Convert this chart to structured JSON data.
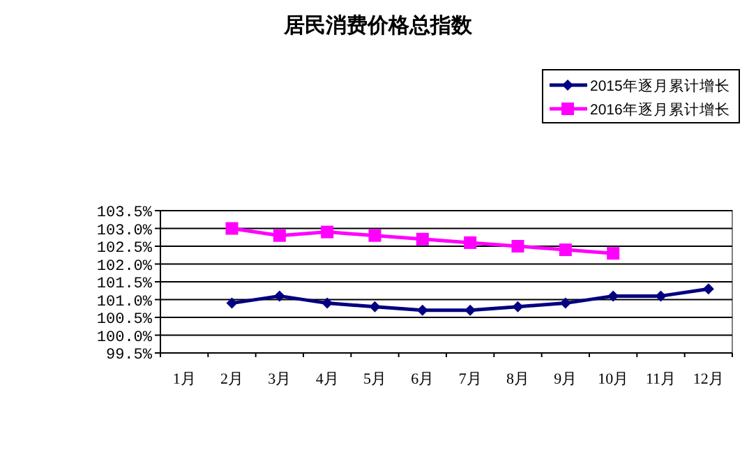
{
  "chart_data": {
    "type": "line",
    "title": "居民消费价格总指数",
    "categories": [
      "1月",
      "2月",
      "3月",
      "4月",
      "5月",
      "6月",
      "7月",
      "8月",
      "9月",
      "10月",
      "11月",
      "12月"
    ],
    "series": [
      {
        "name": "2015年逐月累计增长",
        "color": "#000080",
        "marker": "diamond",
        "values": [
          null,
          100.9,
          101.1,
          100.9,
          100.8,
          100.7,
          100.7,
          100.8,
          100.9,
          101.1,
          101.1,
          101.3
        ]
      },
      {
        "name": "2016年逐月累计增长",
        "color": "#ff00ff",
        "marker": "square",
        "values": [
          null,
          103.0,
          102.8,
          102.9,
          102.8,
          102.7,
          102.6,
          102.5,
          102.4,
          102.3,
          null,
          null
        ]
      }
    ],
    "ylim": [
      99.5,
      103.5
    ],
    "yticks": [
      {
        "value": 99.5,
        "label": "99.5%"
      },
      {
        "value": 100.0,
        "label": "100.0%"
      },
      {
        "value": 100.5,
        "label": "100.5%"
      },
      {
        "value": 101.0,
        "label": "101.0%"
      },
      {
        "value": 101.5,
        "label": "101.5%"
      },
      {
        "value": 102.0,
        "label": "102.0%"
      },
      {
        "value": 102.5,
        "label": "102.5%"
      },
      {
        "value": 103.0,
        "label": "103.0%"
      },
      {
        "value": 103.5,
        "label": "103.5%"
      }
    ],
    "grid": "y",
    "legend": "top right",
    "line_style": "solid"
  }
}
